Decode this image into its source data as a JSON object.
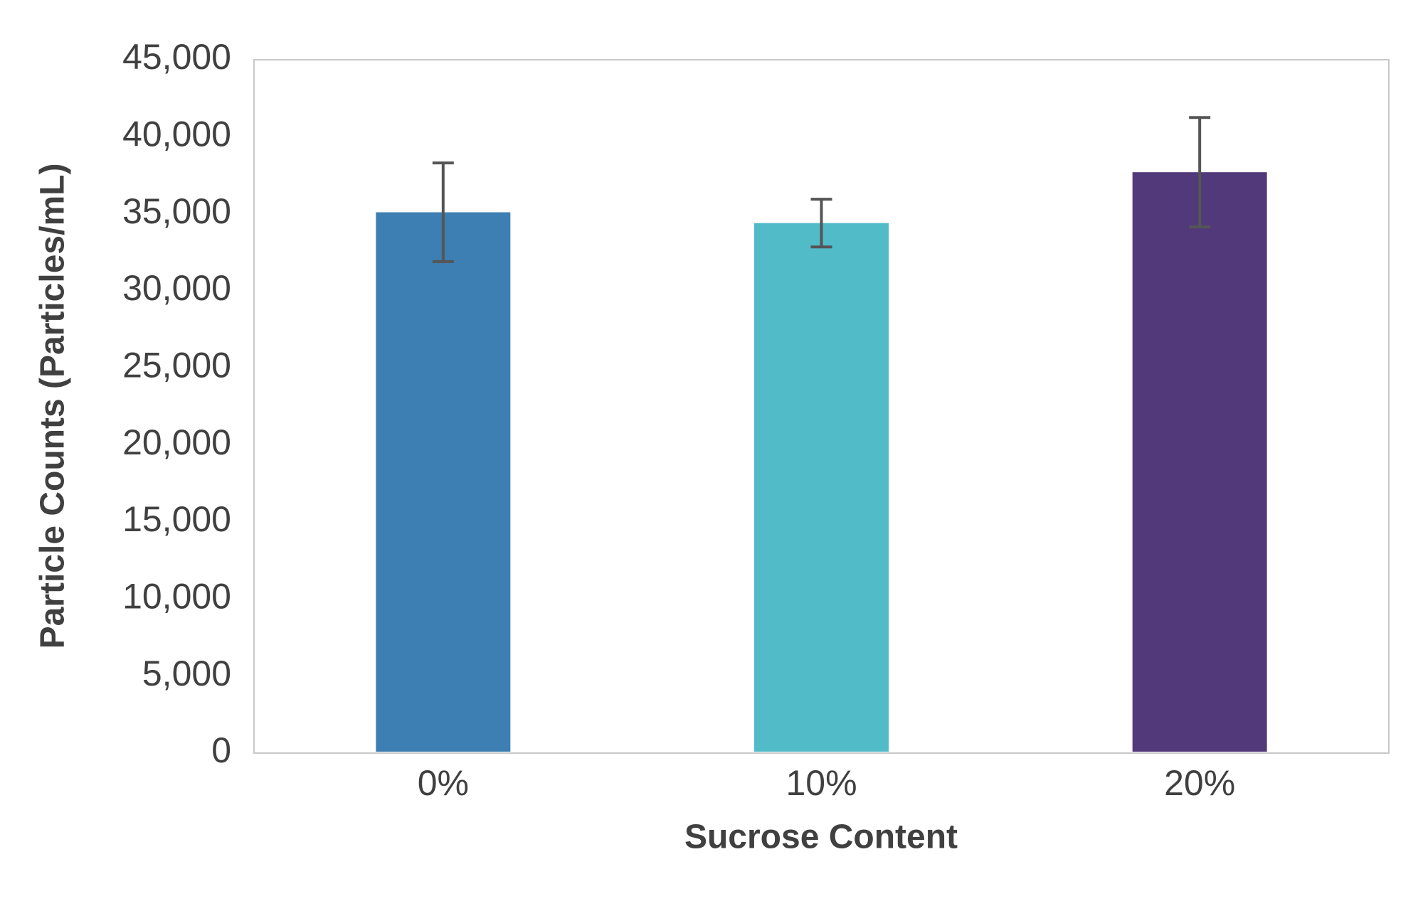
{
  "chart_data": {
    "type": "bar",
    "x_label": "Sucrose Content",
    "y_label": "Particle Counts (Particles/mL)",
    "categories": [
      "0%",
      "10%",
      "20%"
    ],
    "values": [
      35100,
      34400,
      37700
    ],
    "errors": [
      3200,
      1550,
      3550
    ],
    "colors": [
      "#3d7fb3",
      "#52bbc8",
      "#52397a"
    ],
    "error_color": "#555555",
    "ylim": [
      0,
      45000
    ],
    "yticks": [
      0,
      {
        "value": 5000,
        "label": "5,000"
      },
      {
        "value": 10000,
        "label": "10,000"
      },
      {
        "value": 15000,
        "label": "15,000"
      },
      {
        "value": 20000,
        "label": "20,000"
      },
      {
        "value": 25000,
        "label": "25,000"
      },
      {
        "value": 30000,
        "label": "30,000"
      },
      {
        "value": 35000,
        "label": "35,000"
      },
      {
        "value": 40000,
        "label": "40,000"
      },
      {
        "value": 45000,
        "label": "45,000"
      }
    ],
    "grid": false
  }
}
